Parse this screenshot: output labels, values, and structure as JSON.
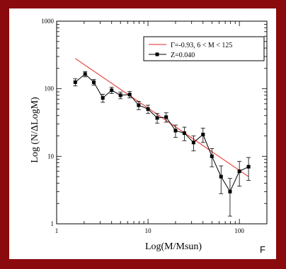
{
  "corner_label": "F",
  "chart_data": {
    "type": "line",
    "xlabel": "Log(M/Msun)",
    "ylabel": "Log (N/ΔLogM)",
    "xscale": "log",
    "yscale": "log",
    "xlim": [
      1,
      200
    ],
    "ylim": [
      1,
      1000
    ],
    "x_tick_labels": [
      "1",
      "10",
      "100"
    ],
    "y_tick_labels": [
      "1",
      "10",
      "100",
      "1000"
    ],
    "grid": false,
    "legend_position": "top-right",
    "series": [
      {
        "name": "Z=0.040",
        "color": "#000000",
        "marker": "square",
        "points": [
          {
            "x": 1.6,
            "y": 125,
            "err": 15
          },
          {
            "x": 2.05,
            "y": 165,
            "err": 15
          },
          {
            "x": 2.55,
            "y": 125,
            "err": 12
          },
          {
            "x": 3.2,
            "y": 73,
            "err": 10
          },
          {
            "x": 4.0,
            "y": 95,
            "err": 10
          },
          {
            "x": 5.0,
            "y": 80,
            "err": 9
          },
          {
            "x": 6.3,
            "y": 82,
            "err": 9
          },
          {
            "x": 7.9,
            "y": 57,
            "err": 8
          },
          {
            "x": 10.0,
            "y": 50,
            "err": 7
          },
          {
            "x": 12.6,
            "y": 37,
            "err": 6
          },
          {
            "x": 15.8,
            "y": 38,
            "err": 6
          },
          {
            "x": 20.0,
            "y": 24,
            "err": 5
          },
          {
            "x": 25.0,
            "y": 22,
            "err": 5
          },
          {
            "x": 31.5,
            "y": 16,
            "err": 4
          },
          {
            "x": 40.0,
            "y": 21,
            "err": 5
          },
          {
            "x": 50.0,
            "y": 10,
            "err": 3
          },
          {
            "x": 63.0,
            "y": 5,
            "err": 2.2
          },
          {
            "x": 79.0,
            "y": 3,
            "err": 1.7
          },
          {
            "x": 100.0,
            "y": 6,
            "err": 2.4
          },
          {
            "x": 126.0,
            "y": 7,
            "err": 2.6
          }
        ]
      },
      {
        "name": "Γ=-0.93, 6 < M < 125",
        "color": "#e8534f",
        "kind": "fit-line",
        "points": [
          {
            "x": 1.6,
            "y": 280
          },
          {
            "x": 126.0,
            "y": 5
          }
        ]
      }
    ]
  }
}
